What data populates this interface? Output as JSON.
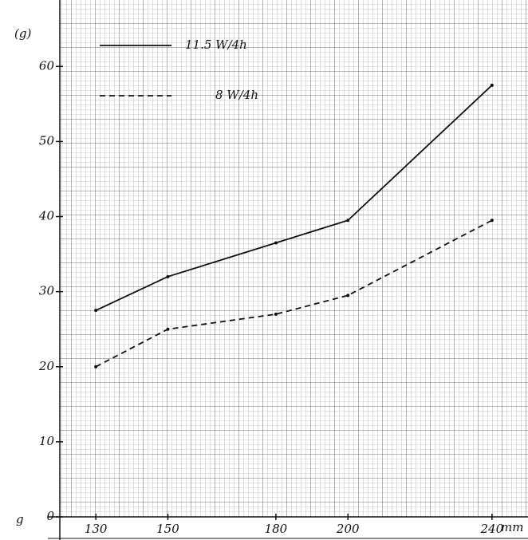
{
  "chart_data": {
    "type": "line",
    "y_unit": "(g)",
    "y_unit_bottom": "g",
    "x_unit": "mm",
    "x": [
      130,
      150,
      180,
      200,
      240
    ],
    "series": [
      {
        "name": "11.5 W/4h",
        "color": "#111111",
        "style": "solid",
        "values": [
          27.5,
          32,
          36.5,
          39.5,
          57.5
        ]
      },
      {
        "name": "8 W/4h",
        "color": "#111111",
        "style": "dashed",
        "values": [
          20,
          25,
          27,
          29.5,
          39.5
        ]
      }
    ],
    "xlim": [
      120,
      250
    ],
    "xticks": [
      130,
      150,
      180,
      200,
      240
    ],
    "ylim": [
      0,
      68
    ],
    "yticks": [
      0,
      10,
      20,
      30,
      40,
      50,
      60
    ],
    "grid": true,
    "legend": "upper-left"
  }
}
